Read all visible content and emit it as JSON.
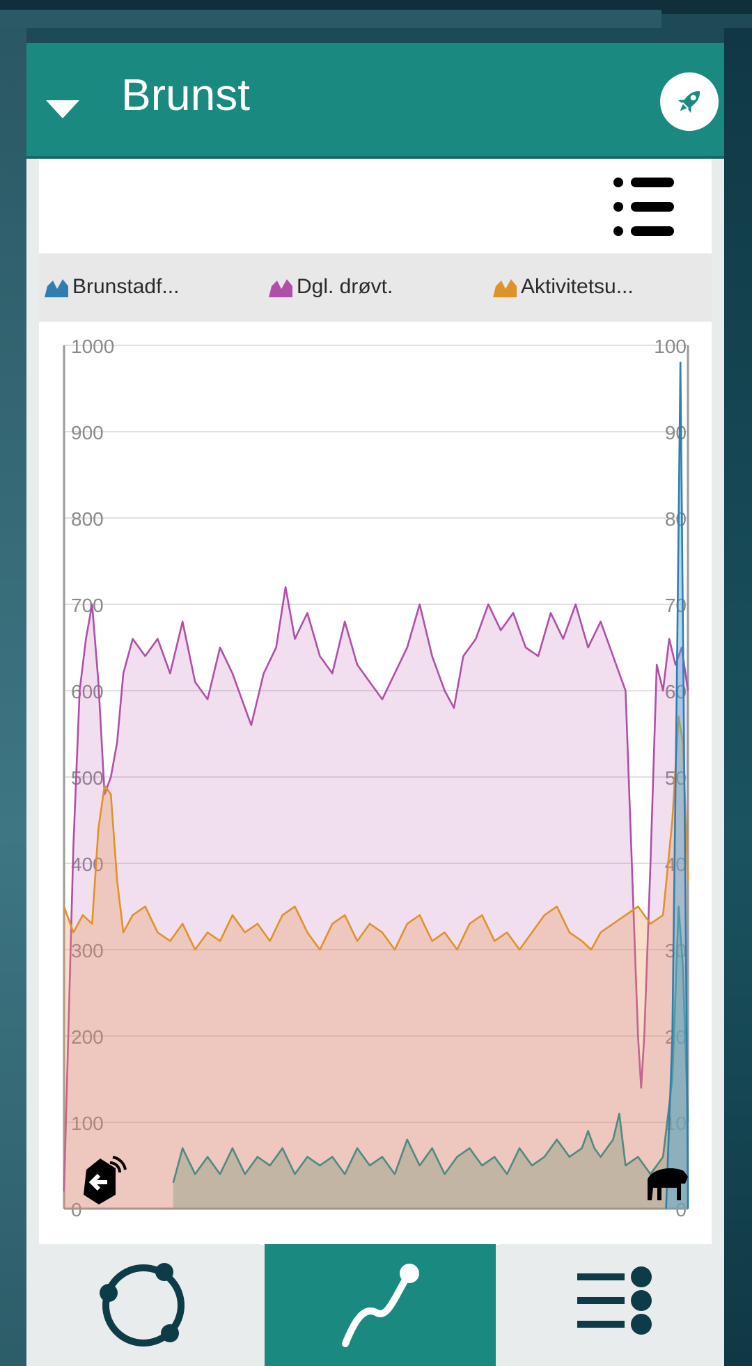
{
  "header": {
    "title": "Brunst"
  },
  "legend": [
    {
      "label": "Brunstadf...",
      "color": "#2e7fb0"
    },
    {
      "label": "Dgl. drøvt.",
      "color": "#b04fa8"
    },
    {
      "label": "Aktivitetsu...",
      "color": "#e0922a"
    }
  ],
  "chart_data": {
    "type": "area",
    "left_axis": {
      "ylim": [
        0,
        1000
      ],
      "ticks": [
        "0",
        "100",
        "200",
        "300",
        "400",
        "500",
        "600",
        "700",
        "800",
        "900",
        "1000"
      ]
    },
    "right_axis": {
      "ylim": [
        0,
        100
      ],
      "ticks": [
        "0",
        "10",
        "20",
        "30",
        "40",
        "50",
        "60",
        "70",
        "80",
        "90",
        "100"
      ]
    },
    "x_range": [
      0,
      100
    ],
    "series": [
      {
        "name": "Dgl. drøvt.",
        "axis": "left",
        "color": "#b04fa8",
        "points": [
          [
            0,
            20
          ],
          [
            1.5,
            420
          ],
          [
            2.5,
            600
          ],
          [
            3.5,
            660
          ],
          [
            4.5,
            700
          ],
          [
            5.5,
            610
          ],
          [
            6.5,
            480
          ],
          [
            7.5,
            500
          ],
          [
            8.5,
            540
          ],
          [
            9.5,
            620
          ],
          [
            11,
            660
          ],
          [
            13,
            640
          ],
          [
            15,
            660
          ],
          [
            17,
            620
          ],
          [
            19,
            680
          ],
          [
            21,
            610
          ],
          [
            23,
            590
          ],
          [
            25,
            650
          ],
          [
            27,
            620
          ],
          [
            29,
            580
          ],
          [
            30,
            560
          ],
          [
            32,
            620
          ],
          [
            34,
            650
          ],
          [
            35.5,
            720
          ],
          [
            37,
            660
          ],
          [
            39,
            690
          ],
          [
            41,
            640
          ],
          [
            43,
            620
          ],
          [
            45,
            680
          ],
          [
            47,
            630
          ],
          [
            49,
            610
          ],
          [
            51,
            590
          ],
          [
            53,
            620
          ],
          [
            55,
            650
          ],
          [
            57,
            700
          ],
          [
            59,
            640
          ],
          [
            61,
            600
          ],
          [
            62.5,
            580
          ],
          [
            64,
            640
          ],
          [
            66,
            660
          ],
          [
            68,
            700
          ],
          [
            70,
            670
          ],
          [
            72,
            690
          ],
          [
            74,
            650
          ],
          [
            76,
            640
          ],
          [
            78,
            690
          ],
          [
            80,
            660
          ],
          [
            82,
            700
          ],
          [
            84,
            650
          ],
          [
            86,
            680
          ],
          [
            88,
            640
          ],
          [
            89,
            620
          ],
          [
            90,
            600
          ],
          [
            91,
            400
          ],
          [
            92,
            200
          ],
          [
            92.5,
            140
          ],
          [
            93,
            200
          ],
          [
            94,
            400
          ],
          [
            95,
            630
          ],
          [
            96,
            600
          ],
          [
            97,
            660
          ],
          [
            98,
            630
          ],
          [
            99,
            650
          ],
          [
            100,
            600
          ]
        ]
      },
      {
        "name": "Aktivitetsu...",
        "axis": "left",
        "color": "#e0922a",
        "points": [
          [
            0,
            350
          ],
          [
            1.5,
            320
          ],
          [
            3,
            340
          ],
          [
            4.5,
            330
          ],
          [
            5.5,
            440
          ],
          [
            6.5,
            490
          ],
          [
            7.5,
            480
          ],
          [
            8.5,
            380
          ],
          [
            9.5,
            320
          ],
          [
            11,
            340
          ],
          [
            13,
            350
          ],
          [
            15,
            320
          ],
          [
            17,
            310
          ],
          [
            19,
            330
          ],
          [
            21,
            300
          ],
          [
            23,
            320
          ],
          [
            25,
            310
          ],
          [
            27,
            340
          ],
          [
            29,
            320
          ],
          [
            31,
            330
          ],
          [
            33,
            310
          ],
          [
            35,
            340
          ],
          [
            37,
            350
          ],
          [
            39,
            320
          ],
          [
            41,
            300
          ],
          [
            43,
            330
          ],
          [
            45,
            340
          ],
          [
            47,
            310
          ],
          [
            49,
            330
          ],
          [
            51,
            320
          ],
          [
            53,
            300
          ],
          [
            55,
            330
          ],
          [
            57,
            340
          ],
          [
            59,
            310
          ],
          [
            61,
            320
          ],
          [
            63,
            300
          ],
          [
            65,
            330
          ],
          [
            67,
            340
          ],
          [
            69,
            310
          ],
          [
            71,
            320
          ],
          [
            73,
            300
          ],
          [
            75,
            320
          ],
          [
            77,
            340
          ],
          [
            79,
            350
          ],
          [
            81,
            320
          ],
          [
            83,
            310
          ],
          [
            84.5,
            300
          ],
          [
            86,
            320
          ],
          [
            88,
            330
          ],
          [
            90,
            340
          ],
          [
            92,
            350
          ],
          [
            94,
            330
          ],
          [
            96,
            340
          ],
          [
            97.5,
            450
          ],
          [
            98.5,
            570
          ],
          [
            99.2,
            540
          ],
          [
            100,
            380
          ]
        ]
      },
      {
        "name": "",
        "axis": "left",
        "color": "#4f8a82",
        "points": [
          [
            17.5,
            30
          ],
          [
            19,
            70
          ],
          [
            21,
            40
          ],
          [
            23,
            60
          ],
          [
            25,
            40
          ],
          [
            27,
            70
          ],
          [
            29,
            40
          ],
          [
            31,
            60
          ],
          [
            33,
            50
          ],
          [
            35,
            70
          ],
          [
            37,
            40
          ],
          [
            39,
            60
          ],
          [
            41,
            50
          ],
          [
            43,
            60
          ],
          [
            45,
            40
          ],
          [
            47,
            70
          ],
          [
            49,
            50
          ],
          [
            51,
            60
          ],
          [
            53,
            40
          ],
          [
            55,
            80
          ],
          [
            57,
            50
          ],
          [
            59,
            70
          ],
          [
            61,
            40
          ],
          [
            63,
            60
          ],
          [
            65,
            70
          ],
          [
            67,
            50
          ],
          [
            69,
            60
          ],
          [
            71,
            40
          ],
          [
            73,
            70
          ],
          [
            75,
            50
          ],
          [
            77,
            60
          ],
          [
            79,
            80
          ],
          [
            81,
            60
          ],
          [
            83,
            70
          ],
          [
            84,
            90
          ],
          [
            85,
            70
          ],
          [
            86,
            60
          ],
          [
            88,
            80
          ],
          [
            89,
            110
          ],
          [
            90,
            50
          ],
          [
            92,
            60
          ],
          [
            94,
            40
          ],
          [
            96,
            60
          ],
          [
            97.5,
            150
          ],
          [
            98.5,
            350
          ],
          [
            99.2,
            280
          ],
          [
            100,
            100
          ]
        ]
      },
      {
        "name": "Brunstadf...",
        "axis": "right",
        "color": "#2e7fb0",
        "points": [
          [
            96.5,
            0
          ],
          [
            97.5,
            20
          ],
          [
            98.2,
            60
          ],
          [
            98.8,
            98
          ],
          [
            99.3,
            60
          ],
          [
            99.8,
            20
          ],
          [
            100,
            0
          ]
        ]
      }
    ]
  },
  "nav": {
    "tabs": [
      {
        "name": "nav-cycle-button",
        "icon": "cycle-icon"
      },
      {
        "name": "nav-graph-button",
        "icon": "graph-icon",
        "active": true
      },
      {
        "name": "nav-list-button",
        "icon": "list-icon"
      }
    ]
  }
}
